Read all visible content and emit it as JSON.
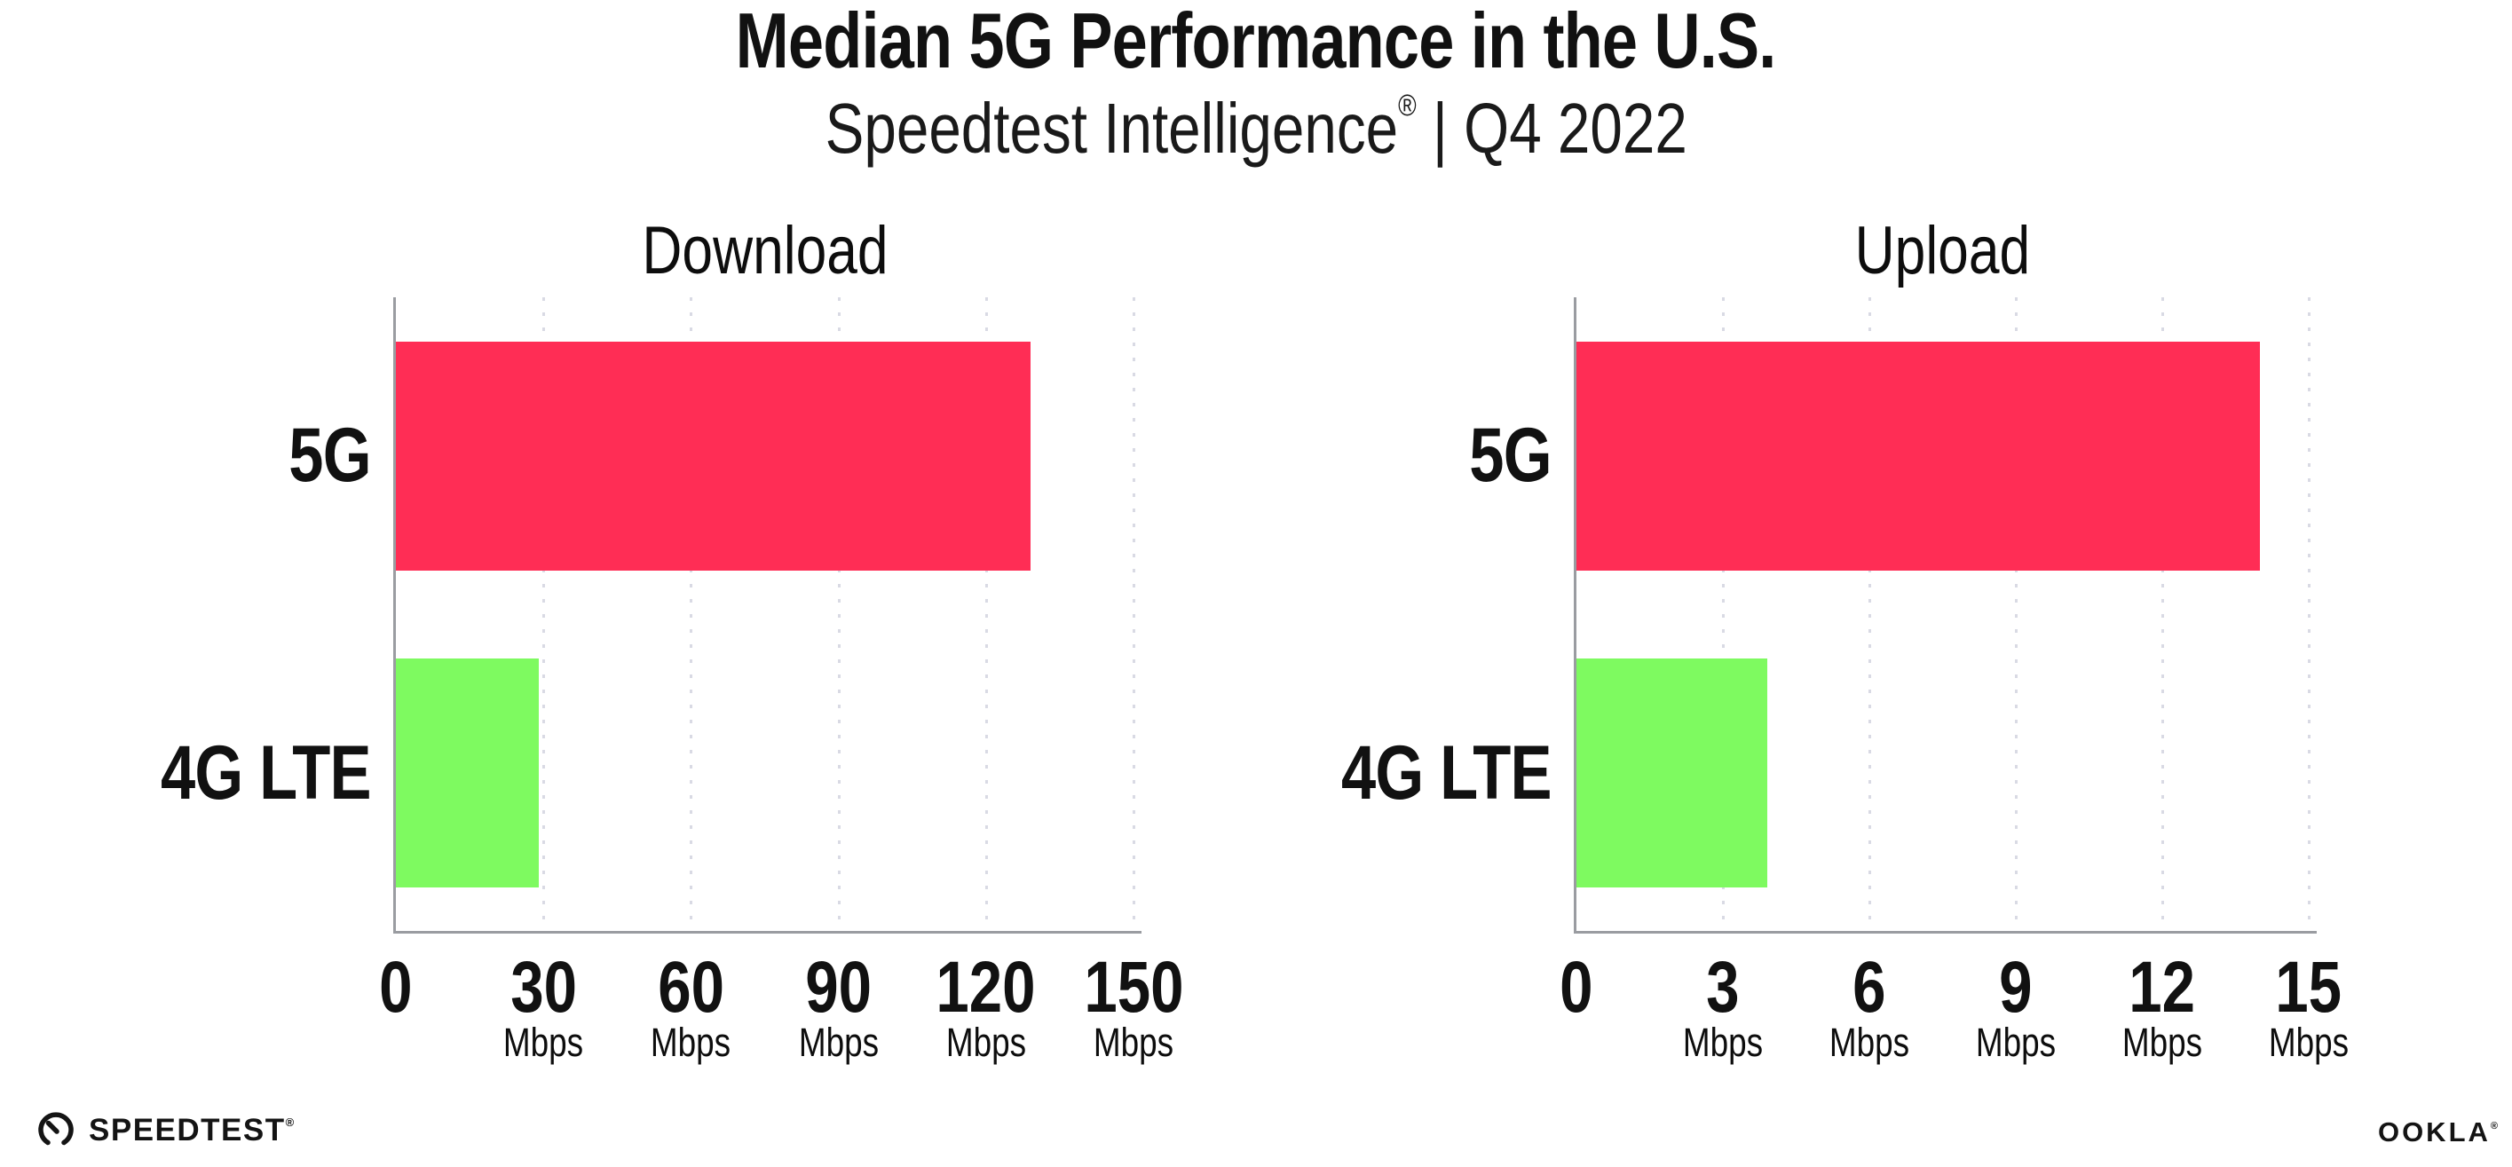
{
  "header": {
    "title": "Median 5G Performance in the U.S.",
    "subtitle_brand": "Speedtest Intelligence",
    "subtitle_reg": "®",
    "subtitle_rest": " | Q4 2022"
  },
  "chart_data": [
    {
      "type": "bar",
      "orientation": "horizontal",
      "title": "Download",
      "categories": [
        "5G",
        "4G LTE"
      ],
      "values": [
        129,
        29
      ],
      "unit": "Mbps",
      "xlim": [
        0,
        150
      ],
      "xticks": [
        0,
        30,
        60,
        90,
        120,
        150
      ],
      "bar_colors": [
        "#ff2d55",
        "#7efa60"
      ],
      "grid": "dotted-vertical",
      "legend": "none"
    },
    {
      "type": "bar",
      "orientation": "horizontal",
      "title": "Upload",
      "categories": [
        "5G",
        "4G LTE"
      ],
      "values": [
        14,
        3.9
      ],
      "unit": "Mbps",
      "xlim": [
        0,
        15
      ],
      "xticks": [
        0,
        3,
        6,
        9,
        12,
        15
      ],
      "bar_colors": [
        "#ff2d55",
        "#7efa60"
      ],
      "grid": "dotted-vertical",
      "legend": "none"
    }
  ],
  "footer": {
    "speedtest_label": "SPEEDTEST",
    "speedtest_reg": "®",
    "ookla_label": "OOKLA",
    "ookla_reg": "®"
  },
  "colors": {
    "bar_5g": "#ff2d55",
    "bar_4g_lte": "#7efa60",
    "axis": "#9a9ca1",
    "grid_dot": "#d9dae4",
    "text": "#111111",
    "background": "#ffffff"
  }
}
